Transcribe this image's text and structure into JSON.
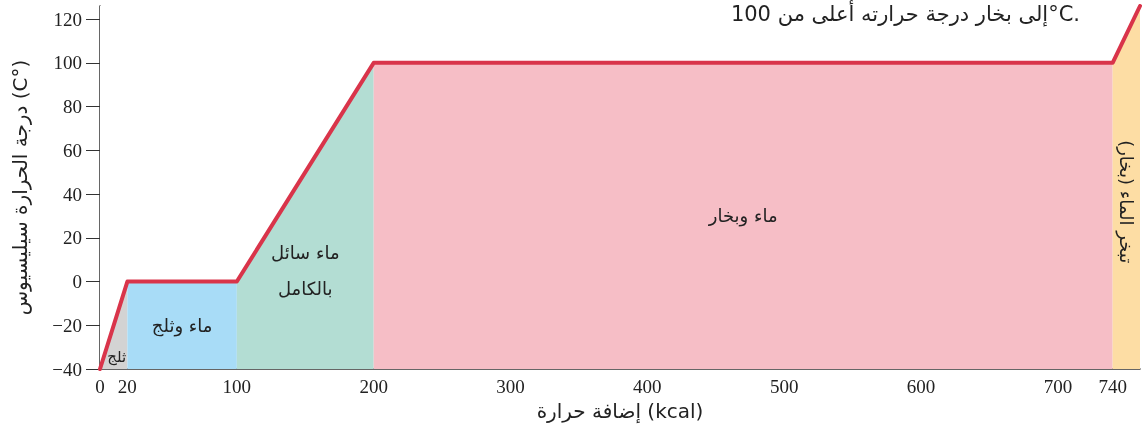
{
  "chart_data": {
    "type": "line",
    "xlabel": "إضافة حرارة (kcal)",
    "ylabel": "درجة الحرارة سيليسيوس (C°)",
    "annotations": [
      "إلى بخار درجة حرارته أعلى من 100°C."
    ],
    "xlim": [
      0,
      760
    ],
    "xticks": [
      0,
      20,
      100,
      200,
      300,
      400,
      500,
      600,
      700,
      740
    ],
    "ylim": [
      -40,
      126
    ],
    "yticks": [
      {
        "value": -40,
        "label": "−40"
      },
      {
        "value": -20,
        "label": "−20"
      },
      0,
      20,
      40,
      60,
      80,
      100,
      120
    ],
    "grid": false,
    "marker": "none",
    "line_style": "solid",
    "series": [
      {
        "color": "#d9344a",
        "x": [
          0,
          20,
          100,
          200,
          740,
          760
        ],
        "values": [
          -40,
          0,
          0,
          100,
          100,
          126
        ]
      }
    ],
    "bands": [
      {
        "axis": "x",
        "from": 0,
        "to": 20,
        "label": "ثلج",
        "color": "#d3d3d3"
      },
      {
        "axis": "x",
        "from": 20,
        "to": 100,
        "label": "ماء وثلج",
        "color": "#a8dcf7"
      },
      {
        "axis": "x",
        "from": 100,
        "to": 200,
        "label": "ماء سائل بالكامل",
        "color": "#b3ddd3"
      },
      {
        "axis": "x",
        "from": 200,
        "to": 740,
        "label": "ماء وبخار",
        "color": "#f6bec6"
      },
      {
        "axis": "x",
        "from": 740,
        "to": 760,
        "label": "تبخر الماء (بخار)",
        "color": "#fddda4"
      }
    ]
  }
}
